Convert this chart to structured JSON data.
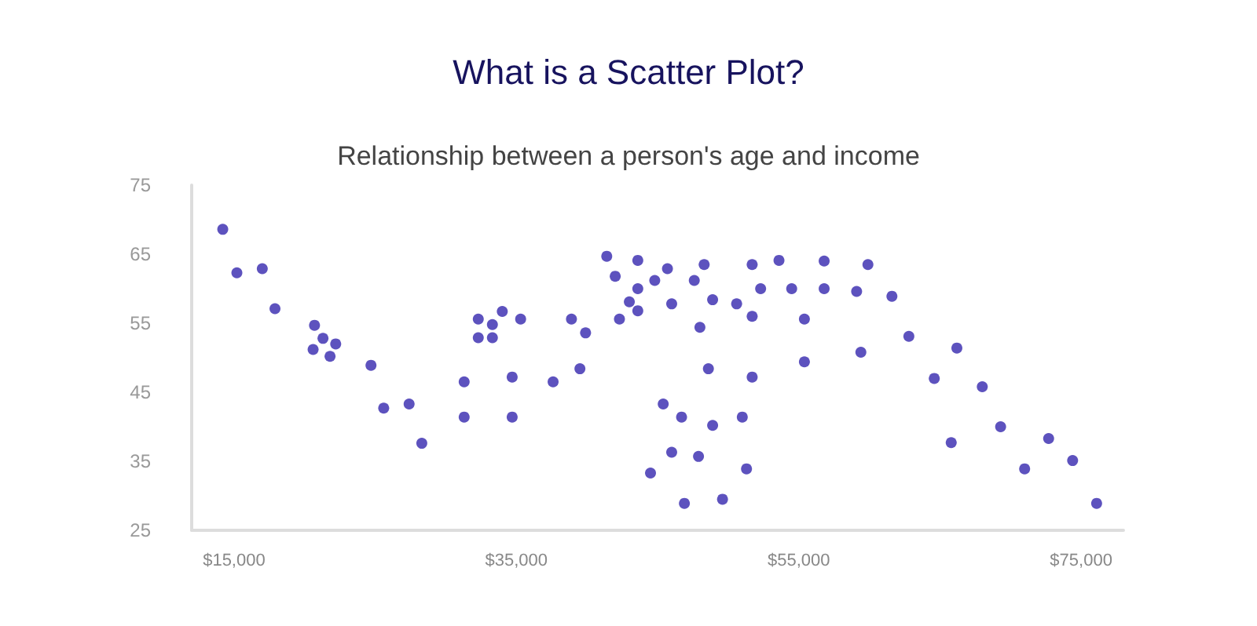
{
  "chart_data": {
    "type": "scatter",
    "title": "What is a Scatter Plot?",
    "subtitle": "Relationship between a person's age and income",
    "x": [
      14200,
      15200,
      17000,
      17900,
      20700,
      21300,
      22200,
      20600,
      21800,
      24700,
      25600,
      27400,
      28300,
      31300,
      31300,
      32300,
      32300,
      33300,
      33300,
      34000,
      35300,
      34700,
      34700,
      37600,
      41400,
      43600,
      42000,
      44800,
      45700,
      48300,
      51700,
      53600,
      56800,
      47600,
      43600,
      43000,
      43600,
      42300,
      46000,
      48900,
      52300,
      54500,
      56800,
      50600,
      51700,
      55400,
      48000,
      38900,
      39900,
      39500,
      48600,
      51700,
      55400,
      45400,
      46700,
      48900,
      51000,
      46000,
      47900,
      44500,
      51300,
      46900,
      49600,
      59900,
      59100,
      61600,
      59400,
      62800,
      66200,
      64600,
      68000,
      65800,
      69300,
      72700,
      71000,
      74400,
      76100
    ],
    "values": [
      68.6,
      62.3,
      62.9,
      57.1,
      54.7,
      52.8,
      52.0,
      51.2,
      50.2,
      48.9,
      42.7,
      43.3,
      37.6,
      46.5,
      41.4,
      55.6,
      52.9,
      54.8,
      52.9,
      56.7,
      55.6,
      47.2,
      41.4,
      46.5,
      64.7,
      64.1,
      61.8,
      61.2,
      62.9,
      63.5,
      63.5,
      64.1,
      64.0,
      61.2,
      60.0,
      58.1,
      56.8,
      55.6,
      57.8,
      58.4,
      60.0,
      60.0,
      60.0,
      57.8,
      56.0,
      55.6,
      54.4,
      55.6,
      53.6,
      48.4,
      48.4,
      47.2,
      49.4,
      43.3,
      41.4,
      40.2,
      41.4,
      36.3,
      35.7,
      33.3,
      33.9,
      28.9,
      29.5,
      63.5,
      59.6,
      58.9,
      50.8,
      53.1,
      51.4,
      47.0,
      45.8,
      37.7,
      40.0,
      38.3,
      33.9,
      35.1,
      28.9
    ],
    "color": "#3527ae",
    "marker": "circle",
    "grid": false,
    "xlim": [
      12000,
      78000
    ],
    "xticks": [
      {
        "value": 15000,
        "label": "$15,000"
      },
      {
        "value": 35000,
        "label": "$35,000"
      },
      {
        "value": 55000,
        "label": "$55,000"
      },
      {
        "value": 75000,
        "label": "$75,000"
      }
    ],
    "ylim": [
      25,
      75
    ],
    "yticks": [
      25,
      35,
      45,
      55,
      65,
      75
    ]
  }
}
